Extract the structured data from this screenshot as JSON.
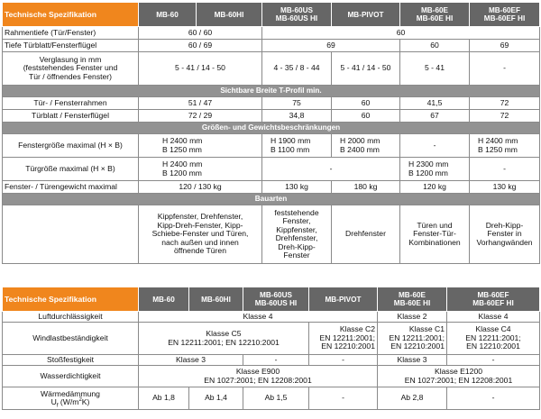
{
  "t1": {
    "header": [
      "Technische Spezifikation",
      "MB-60",
      "MB-60HI",
      "MB-60US\nMB-60US HI",
      "MB-PIVOT",
      "MB-60E\nMB-60E HI",
      "MB-60EF\nMB-60EF HI"
    ],
    "rahmentiefe": {
      "label": "Rahmentiefe (Tür/Fenster)",
      "v1": "60 / 60",
      "v2": "60"
    },
    "tiefe": {
      "label": "Tiefe Türblatt/Fensterflügel",
      "v1": "60 / 69",
      "v2": "69",
      "v3": "60",
      "v4": "69"
    },
    "verglasung": {
      "label": "Verglasung in mm\n(feststehendes Fenster und\nTür / öffnendes Fenster)",
      "v1": "5 - 41 / 14 - 50",
      "v2": "4 - 35 / 8 - 44",
      "v3": "5 - 41 / 14 - 50",
      "v4": "5 - 41",
      "v5": "-"
    },
    "section1": "Sichtbare Breite T-Profil min.",
    "tuerrahmen": {
      "label": "Tür- / Fensterrahmen",
      "v1": "51 / 47",
      "v2": "75",
      "v3": "60",
      "v4": "41,5",
      "v5": "72"
    },
    "tuerblatt": {
      "label": "Türblatt / Fensterflügel",
      "v1": "72 / 29",
      "v2": "34,8",
      "v3": "60",
      "v4": "67",
      "v5": "72"
    },
    "section2": "Größen- und Gewichtsbeschränkungen",
    "fenstergroesse": {
      "label": "Fenstergröße maximal  (H × B)",
      "v1": "H 2400 mm\nB 1250 mm",
      "v2": "H 1900 mm\nB 1100 mm",
      "v3": "H 2000 mm\nB 2400 mm",
      "v4": "-",
      "v5": "H 2400 mm\nB 1250 mm"
    },
    "tuergroesse": {
      "label": "Türgröße maximal (H × B)",
      "v1": "H 2400 mm\nB 1200 mm",
      "v2": "-",
      "v3": "H 2300 mm\nB 1200 mm",
      "v4": "-"
    },
    "gewicht": {
      "label": "Fenster- / Türengewicht maximal",
      "v1": "120 / 130 kg",
      "v2": "130 kg",
      "v3": "180 kg",
      "v4": "120 kg",
      "v5": "130 kg"
    },
    "section3": "Bauarten",
    "bauarten": {
      "v1": "Kippfenster, Drehfenster,\nKipp-Dreh-Fenster, Kipp-\nSchiebe-Fenster und Türen,\nnach außen und innen\nöffnende Türen",
      "v2": "feststehende\nFenster,\nKippfenster,\nDrehfenster,\nDreh-Kipp-\nFenster",
      "v3": "Drehfenster",
      "v4": "Türen und\nFenster-Tür-\nKombinationen",
      "v5": "Dreh-Kipp-\nFenster in\nVorhangwänden"
    }
  },
  "t2": {
    "header": [
      "Technische Spezifikation",
      "MB-60",
      "MB-60HI",
      "MB-60US\nMB-60US HI",
      "MB-PIVOT",
      "MB-60E\nMB-60E HI",
      "MB-60EF\nMB-60EF HI"
    ],
    "luft": {
      "label": "Luftdurchlässigkeit",
      "v1": "Klasse 4",
      "v2": "Klasse 2",
      "v3": "Klasse 4"
    },
    "wind": {
      "label": "Windlastbeständigkeit",
      "v1": "Klasse C5\nEN 12211:2001; EN 12210:2001",
      "v2": "Klasse C2\nEN 12211:2001;\nEN 12210:2001",
      "v3": "Klasse C1\nEN 12211:2001;\nEN 12210:2001",
      "v4": "Klasse C4\nEN 12211:2001;\nEN 12210:2001"
    },
    "stoss": {
      "label": "Stoßfestigkeit",
      "v1": "Klasse 3",
      "v2": "-",
      "v3": "-",
      "v4": "Klasse 3",
      "v5": "-"
    },
    "wasser": {
      "label": "Wasserdichtigkeit",
      "v1": "Klasse  E900\nEN 1027:2001; EN 12208:2001",
      "v2": "Klasse E1200\nEN 1027:2001; EN 12208:2001"
    },
    "waerme": {
      "label1": "Wärmedämmung",
      "label2": "U",
      "label2_sub": "f",
      "label2_rest": " (W/m",
      "label2_sup": "2",
      "label2_end": "K)",
      "v1": "Ab 1,8",
      "v2": "Ab 1,4",
      "v3": "Ab 1,5",
      "v4": "-",
      "v5": "Ab 2,8",
      "v6": "-"
    }
  }
}
